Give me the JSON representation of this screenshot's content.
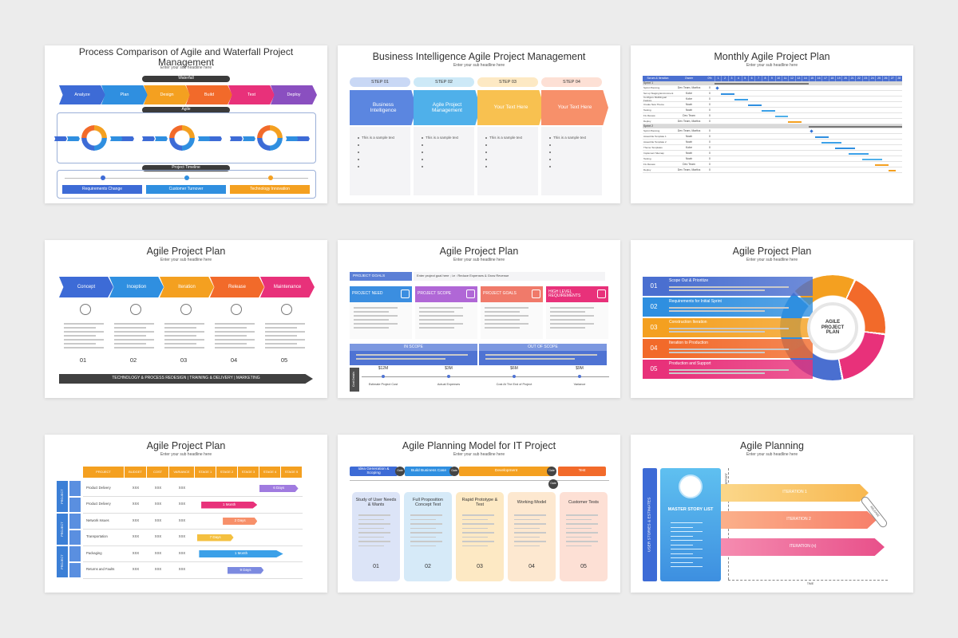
{
  "slides": [
    {
      "title": "Process Comparison of Agile and Waterfall Project Management",
      "subtitle": "Enter your sub headline here",
      "waterfall_label": "Waterfall",
      "steps": [
        "Analyze",
        "Plan",
        "Design",
        "Build",
        "Test",
        "Deploy"
      ],
      "agile_label": "Agile",
      "timeline_label": "Project Timeline",
      "milestones": [
        "Requirements Change",
        "Customer Turnover",
        "Technology Innovation"
      ]
    },
    {
      "title": "Business Intelligence Agile Project Management",
      "subtitle": "Enter your sub headline here",
      "steps": [
        "STEP 01",
        "STEP 02",
        "STEP 03",
        "STEP 04"
      ],
      "headers": [
        "Business Intelligence",
        "Agile Project Management",
        "Your Text Here",
        "Your Text Here"
      ],
      "bullet": "This is a sample text"
    },
    {
      "title": "Monthly Agile Project Plan",
      "subtitle": "Enter your sub headline here",
      "columns": [
        "Scrum & Iteration",
        "Owner",
        "0%"
      ],
      "days": [
        1,
        2,
        3,
        4,
        5,
        6,
        7,
        8,
        9,
        10,
        11,
        12,
        13,
        14,
        15,
        16,
        17,
        18,
        19,
        20,
        21,
        22,
        23,
        24,
        25,
        26,
        27,
        28
      ],
      "sprints": [
        {
          "name": "Sprint 1",
          "rows": [
            [
              "Sprint Planning",
              "Dev Team, Martha",
              "0"
            ],
            [
              "Set up Staging Environment",
              "Kobe",
              "0"
            ],
            [
              "Configure Multilingual Feature",
              "Kobe",
              "0"
            ],
            [
              "Create New Theme",
              "Noah",
              "0"
            ],
            [
              "Testing",
              "Noah",
              "0"
            ],
            [
              "Fix Review",
              "Dev Team",
              "0"
            ],
            [
              "Deploy",
              "Dev Team, Martha",
              "0"
            ]
          ]
        },
        {
          "name": "Sprint 2",
          "rows": [
            [
              "Sprint Planning",
              "Dev Team, Martha",
              "0"
            ],
            [
              "Assemble Template 1",
              "Noah",
              "0"
            ],
            [
              "Assemble Template 2",
              "Noah",
              "0"
            ],
            [
              "Theme Templates",
              "Kobe",
              "0"
            ],
            [
              "Implement Sitemap",
              "Noah",
              "0"
            ],
            [
              "Testing",
              "Noah",
              "0"
            ],
            [
              "Fix Review",
              "Dev Team",
              "0"
            ],
            [
              "Deploy",
              "Dev Team, Martha",
              "0"
            ]
          ]
        }
      ]
    },
    {
      "title": "Agile Project Plan",
      "subtitle": "Enter your sub headline here",
      "phases": [
        "Concept",
        "Inception",
        "Iteration",
        "Release",
        "Maintenance"
      ],
      "numbers": [
        "01",
        "02",
        "03",
        "04",
        "05"
      ],
      "footer": "TECHNOLOGY & PROCESS REDESIGN | TRAINING & DELIVERY | MARKETING"
    },
    {
      "title": "Agile Project Plan",
      "subtitle": "Enter your sub headline here",
      "goals_label": "PROJECT GOALS",
      "goals_text": "Enter project goal here ; i.e : Reduce Expenses & Grow Revenue",
      "boxes": [
        "PROJECT NEED",
        "PROJECT SCOPE",
        "PROJECT GOALS",
        "HIGH LEVEL REQUIREMENTS"
      ],
      "in_scope": "IN SCOPE",
      "out_scope": "OUT OF SCOPE",
      "cost_label": "Cost Details",
      "costs": [
        "$12M",
        "$3M",
        "$6M",
        "$9M"
      ],
      "cost_labels": [
        "Estimate Project Cost",
        "Actual Expenses",
        "Cost At The End of Project",
        "Variance"
      ]
    },
    {
      "title": "Agile Project Plan",
      "subtitle": "Enter your sub headline here",
      "items": [
        {
          "num": "01",
          "label": "Scope Out & Prioritize"
        },
        {
          "num": "02",
          "label": "Requirements for Initial Sprint"
        },
        {
          "num": "03",
          "label": "Construction Iteration"
        },
        {
          "num": "04",
          "label": "Iteration to Production"
        },
        {
          "num": "05",
          "label": "Production and Support"
        }
      ],
      "center": "AGILE PROJECT PLAN"
    },
    {
      "title": "Agile Project Plan",
      "subtitle": "Enter your sub headline here",
      "headers": [
        "PROJECT",
        "BUDGET",
        "COST",
        "VARIANCE",
        "STAGE 1",
        "STAGE 2",
        "STAGE 3",
        "STAGE 4",
        "STAGE 5"
      ],
      "groups": [
        "PROJECT",
        "PROJECT",
        "PROJECT"
      ],
      "rows": [
        [
          "Product Delivery",
          "XXX",
          "XXX",
          "XXX"
        ],
        [
          "Product Delivery",
          "XXX",
          "XXX",
          "XXX"
        ],
        [
          "Network Issues",
          "XXX",
          "XXX",
          "XXX"
        ],
        [
          "Transportation",
          "XXX",
          "XXX",
          "XXX"
        ],
        [
          "Packaging",
          "XXX",
          "XXX",
          "XXX"
        ],
        [
          "Returns and Faults",
          "XXX",
          "XXX",
          "XXX"
        ]
      ],
      "bars": [
        "6 Days",
        "1 Month",
        "2 Days",
        "7 Days",
        "1 Month",
        "9 Days"
      ]
    },
    {
      "title": "Agile Planning Model for IT Project",
      "subtitle": "Enter your sub headline here",
      "phases": [
        "Idea Generation & Scoping",
        "Build Business Case",
        "Development",
        "Test"
      ],
      "gates": [
        "Gate",
        "Gate",
        "Gate",
        "Gate"
      ],
      "cards": [
        {
          "title": "Study of User Needs & Wants",
          "num": "01"
        },
        {
          "title": "Full Proposition Concept Test",
          "num": "02"
        },
        {
          "title": "Rapid Prototype & Test",
          "num": "03"
        },
        {
          "title": "Working Model",
          "num": "04"
        },
        {
          "title": "Customer Tests",
          "num": "05"
        }
      ]
    },
    {
      "title": "Agile Planning",
      "subtitle": "Enter your sub headline here",
      "side": "USER STORIES & ESTIMATES",
      "master": "MASTER STORY LIST",
      "iterations": [
        "ITERATION 1",
        "ITERATION 2",
        "ITERATION (n)"
      ],
      "release": "RELEASE",
      "effort": "EFFORT",
      "time": "TIME"
    }
  ]
}
